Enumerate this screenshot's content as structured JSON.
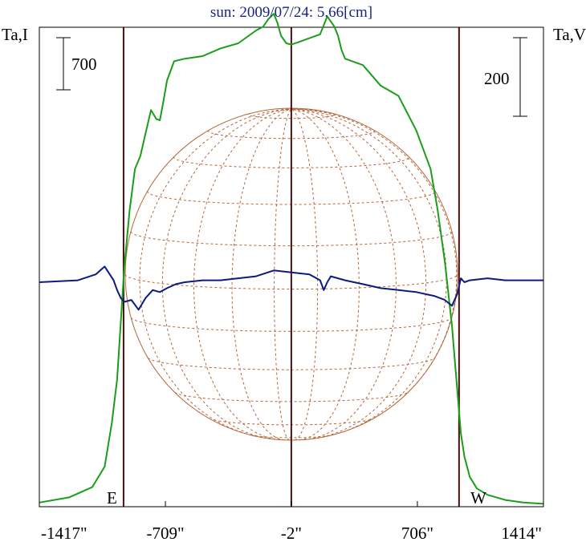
{
  "chart_data": {
    "type": "line",
    "title": "sun: 2009/07/24: 5.66[cm]",
    "left_axis_label": "Ta,I",
    "right_axis_label": "Ta,V",
    "left_scale_bar": "700",
    "right_scale_bar": "200",
    "east_label": "E",
    "west_label": "W",
    "x_ticks": [
      {
        "value": -1417,
        "label": "-1417\""
      },
      {
        "value": -709,
        "label": "-709\""
      },
      {
        "value": -2,
        "label": "-2\""
      },
      {
        "value": 706,
        "label": "706\""
      },
      {
        "value": 1414,
        "label": "1414\""
      }
    ],
    "xlim": [
      -1417,
      1414
    ],
    "grid": false,
    "limb_markers_arcsec": [
      -944,
      -2,
      940
    ],
    "colors": {
      "intensity": "#1a9e1a",
      "polarization": "#0d1a80",
      "limb_lines": "#4a1010",
      "solar_grid": "#b5653a",
      "title": "#1a237e"
    },
    "series": [
      {
        "name": "Ta,I",
        "x": [
          -1417,
          -1250,
          -1120,
          -1050,
          -1010,
          -980,
          -960,
          -940,
          -910,
          -880,
          -850,
          -820,
          -790,
          -760,
          -740,
          -720,
          -700,
          -660,
          -600,
          -500,
          -400,
          -300,
          -200,
          -160,
          -130,
          -100,
          -80,
          -60,
          -30,
          -2,
          40,
          100,
          160,
          200,
          240,
          260,
          280,
          300,
          340,
          400,
          500,
          600,
          700,
          780,
          820,
          860,
          900,
          930,
          950,
          970,
          1000,
          1040,
          1100,
          1200,
          1300,
          1414
        ],
        "values": [
          20,
          60,
          140,
          300,
          640,
          980,
          1420,
          1850,
          2300,
          2620,
          2720,
          2900,
          3080,
          3010,
          3000,
          3150,
          3310,
          3460,
          3480,
          3500,
          3560,
          3600,
          3700,
          3730,
          3790,
          3830,
          3760,
          3660,
          3600,
          3590,
          3610,
          3640,
          3670,
          3810,
          3730,
          3660,
          3550,
          3480,
          3460,
          3430,
          3270,
          3190,
          2920,
          2620,
          2300,
          1900,
          1400,
          900,
          560,
          380,
          220,
          130,
          80,
          40,
          20,
          10
        ]
      },
      {
        "name": "Ta,V",
        "x": [
          -1417,
          -1200,
          -1100,
          -1050,
          -1000,
          -980,
          -960,
          -940,
          -900,
          -860,
          -820,
          -780,
          -740,
          -700,
          -650,
          -600,
          -500,
          -400,
          -300,
          -200,
          -100,
          -2,
          100,
          160,
          180,
          200,
          220,
          300,
          400,
          500,
          600,
          700,
          800,
          860,
          900,
          930,
          950,
          970,
          1000,
          1100,
          1200,
          1414
        ],
        "values": [
          0,
          5,
          20,
          40,
          5,
          -20,
          -40,
          -50,
          -45,
          -70,
          -40,
          -20,
          -25,
          -15,
          -5,
          0,
          5,
          5,
          10,
          15,
          30,
          25,
          20,
          5,
          -20,
          0,
          15,
          5,
          -5,
          -15,
          -20,
          -25,
          -35,
          -45,
          -60,
          -30,
          10,
          0,
          5,
          10,
          5,
          5
        ]
      }
    ]
  }
}
